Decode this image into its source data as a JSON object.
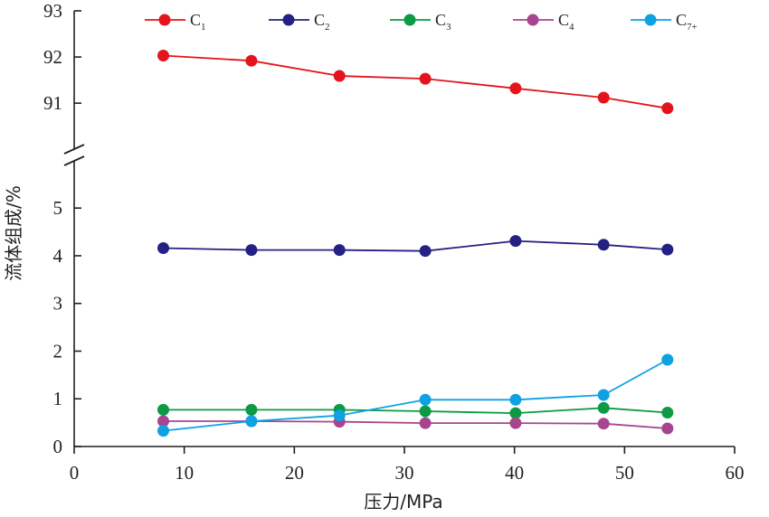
{
  "chart_data": {
    "type": "line",
    "xlabel": "压力/MPa",
    "ylabel": "流体组成/%",
    "xlim": [
      0,
      60
    ],
    "x_ticks": [
      "0",
      "10",
      "20",
      "30",
      "40",
      "50",
      "60"
    ],
    "y_axis_break": true,
    "ylim_lower": [
      0,
      5.8
    ],
    "ylim_upper": [
      90.2,
      93
    ],
    "y_ticks_lower": [
      "0",
      "1",
      "2",
      "3",
      "4",
      "5"
    ],
    "y_ticks_upper": [
      "91",
      "92",
      "93"
    ],
    "grid": false,
    "legend_position": "top",
    "x": [
      8.1,
      16.1,
      24.1,
      31.9,
      40.1,
      48.1,
      53.9
    ],
    "series": [
      {
        "name": "C1",
        "label_main": "C",
        "label_sub": "1",
        "color": "#e3141c",
        "values": [
          92.03,
          91.92,
          91.59,
          91.53,
          91.32,
          91.12,
          90.89
        ]
      },
      {
        "name": "C2",
        "label_main": "C",
        "label_sub": "2",
        "color": "#252083",
        "values": [
          4.16,
          4.12,
          4.12,
          4.1,
          4.31,
          4.23,
          4.13
        ]
      },
      {
        "name": "C3",
        "label_main": "C",
        "label_sub": "3",
        "color": "#0c9a44",
        "values": [
          0.77,
          0.77,
          0.77,
          0.74,
          0.7,
          0.81,
          0.71
        ]
      },
      {
        "name": "C4",
        "label_main": "C",
        "label_sub": "4",
        "color": "#a6468e",
        "values": [
          0.53,
          0.53,
          0.52,
          0.49,
          0.49,
          0.48,
          0.38
        ]
      },
      {
        "name": "C7+",
        "label_main": "C",
        "label_sub": "7+",
        "color": "#0ea2e2",
        "values": [
          0.33,
          0.53,
          0.65,
          0.98,
          0.98,
          1.08,
          1.82
        ]
      }
    ]
  }
}
